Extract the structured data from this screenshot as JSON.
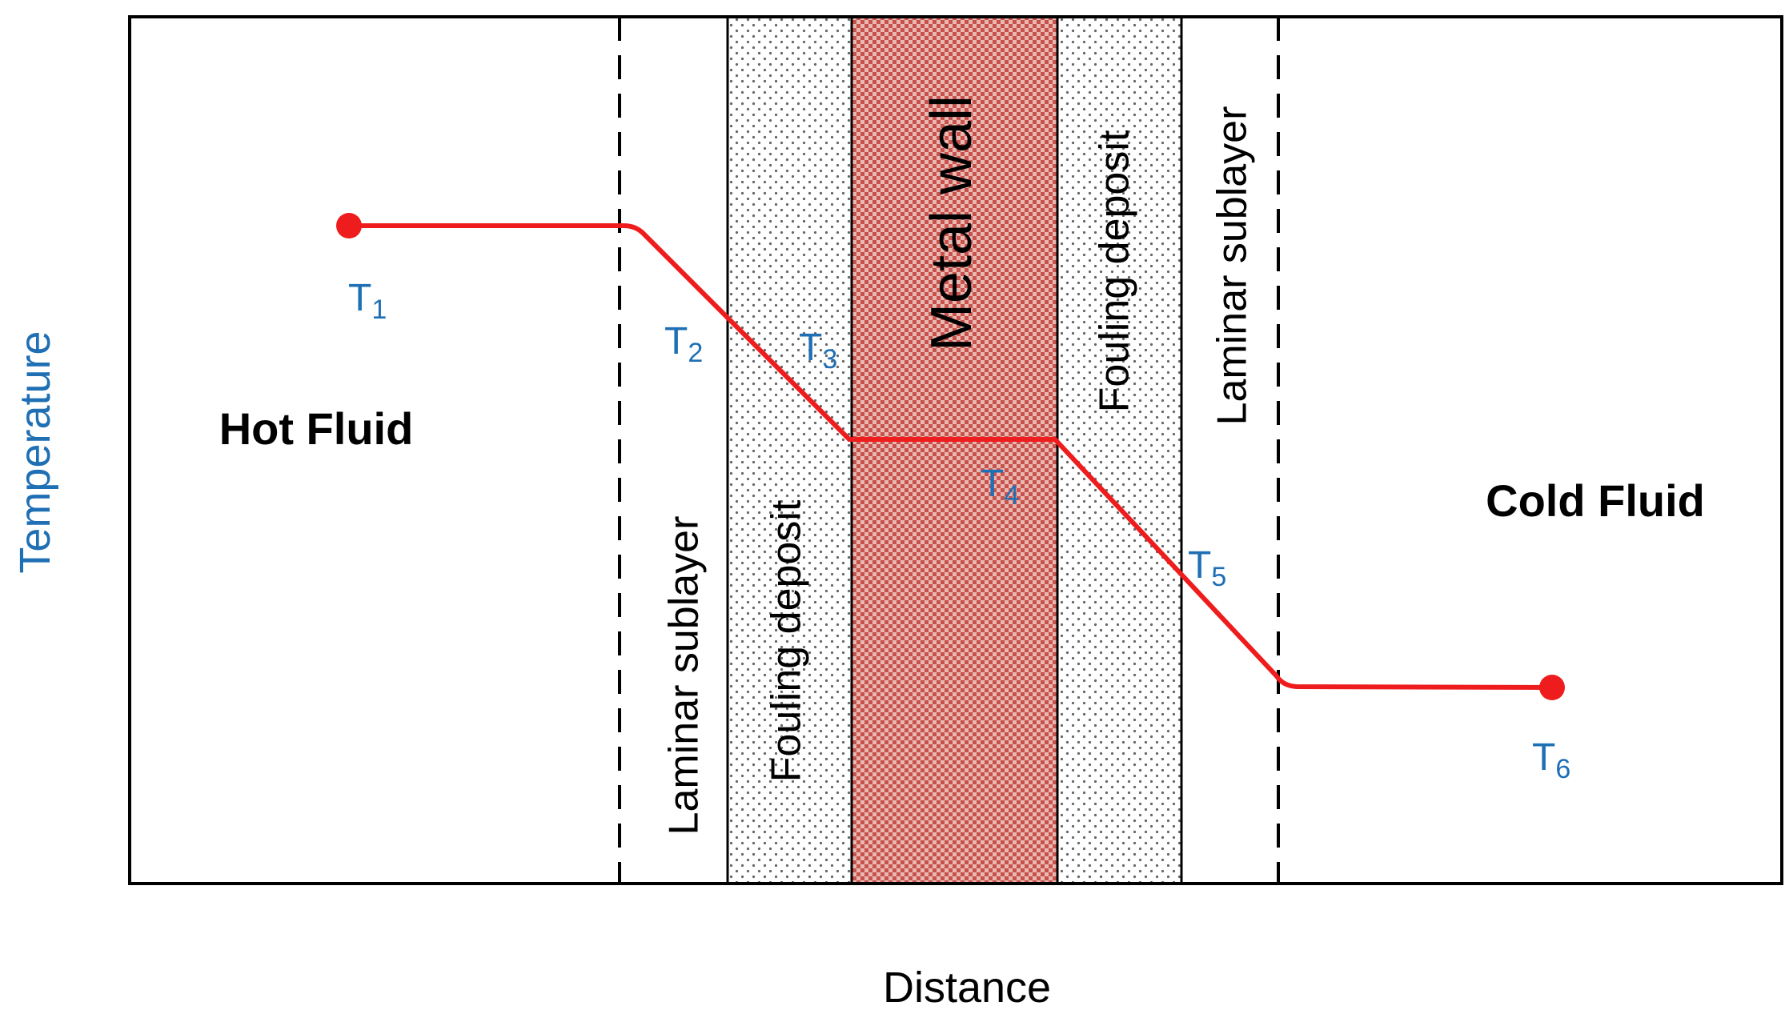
{
  "axes": {
    "y_label": "Temperature",
    "x_label": "Distance"
  },
  "regions": {
    "hot_fluid": "Hot Fluid",
    "cold_fluid": "Cold Fluid"
  },
  "layers": [
    "Laminar sublayer",
    "Fouling deposit",
    "Metal wall",
    "Fouling deposit",
    "Laminar sublayer"
  ],
  "points": [
    {
      "symbol": "T",
      "subscript": "1"
    },
    {
      "symbol": "T",
      "subscript": "2"
    },
    {
      "symbol": "T",
      "subscript": "3"
    },
    {
      "symbol": "T",
      "subscript": "4"
    },
    {
      "symbol": "T",
      "subscript": "5"
    },
    {
      "symbol": "T",
      "subscript": "6"
    }
  ]
}
